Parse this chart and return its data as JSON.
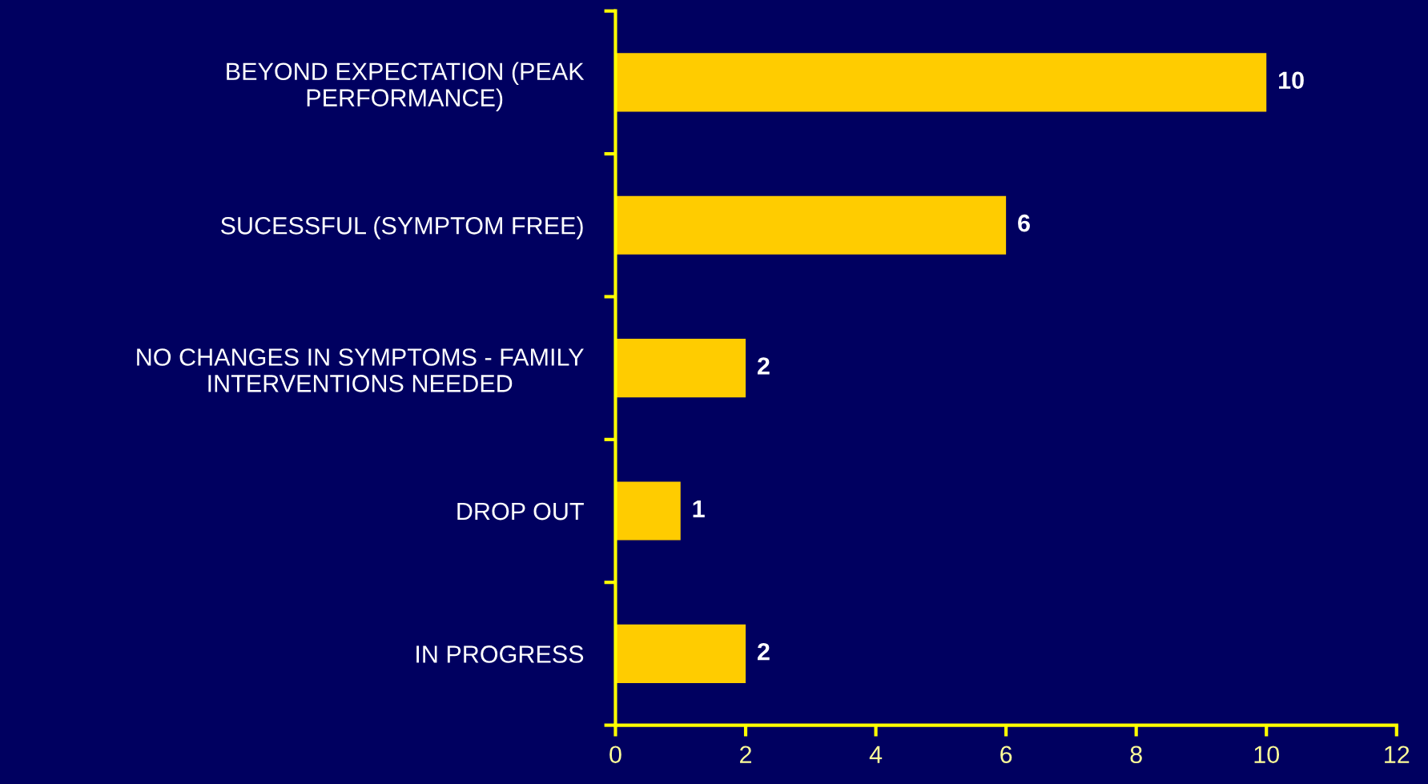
{
  "chart_data": {
    "type": "bar",
    "orientation": "horizontal",
    "categories": [
      "BEYOND EXPECTATION (PEAK\nPERFORMANCE)",
      "SUCESSFUL (SYMPTOM FREE)",
      "NO CHANGES IN SYMPTOMS - FAMILY\nINTERVENTIONS NEEDED",
      "DROP OUT",
      "IN PROGRESS"
    ],
    "values": [
      10,
      6,
      2,
      1,
      2
    ],
    "color": "#ffcc00",
    "xlim": [
      0,
      12
    ],
    "xticks": [
      0,
      2,
      4,
      6,
      8,
      10,
      12
    ],
    "data_labels": true,
    "grid": false,
    "legend": false
  }
}
